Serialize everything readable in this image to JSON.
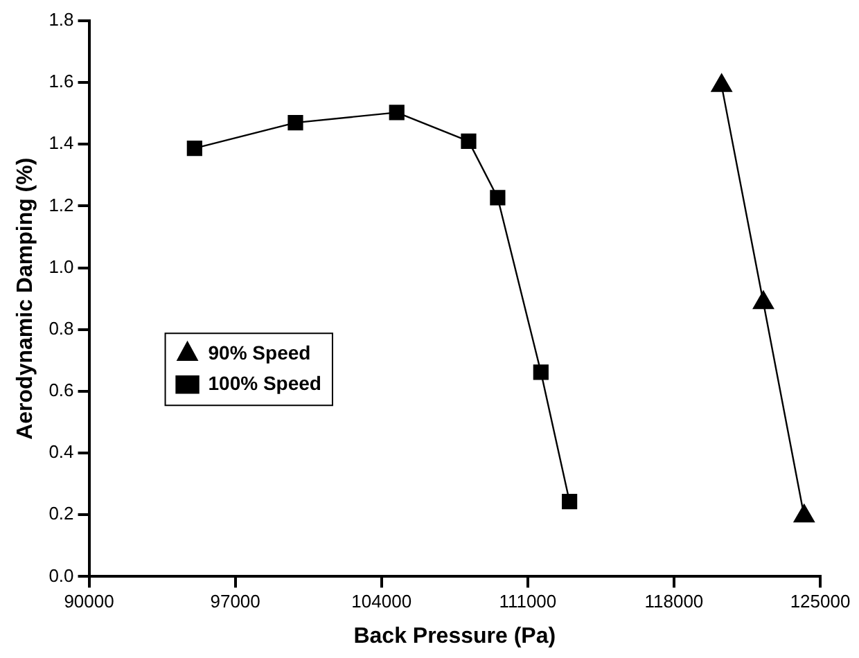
{
  "chart_data": {
    "type": "line",
    "xlabel": "Back Pressure (Pa)",
    "ylabel": "Aerodynamic Damping (%)",
    "xlim": [
      90000,
      125000
    ],
    "xticks": [
      90000,
      97000,
      104000,
      111000,
      118000,
      125000
    ],
    "ylim": [
      0,
      1.8
    ],
    "yticks": [
      {
        "value": 0,
        "label": "0.0"
      },
      0.2,
      0.4,
      0.6,
      0.8,
      {
        "value": 1,
        "label": "1.0"
      },
      1.2,
      1.4,
      1.6,
      1.8
    ],
    "grid": false,
    "legend": "left",
    "line_style": "solid",
    "series": [
      {
        "name": "90% Speed",
        "color": "#000000",
        "marker": "triangle",
        "x": [
          120280,
          122280,
          124230
        ],
        "values": [
          1.59,
          0.887,
          0.196
        ]
      },
      {
        "name": "100% Speed",
        "color": "#000000",
        "marker": "square",
        "x": [
          95050,
          99880,
          104730,
          108170,
          109560,
          111630,
          113000
        ],
        "values": [
          1.387,
          1.47,
          1.503,
          1.41,
          1.227,
          0.662,
          0.243
        ]
      }
    ]
  }
}
